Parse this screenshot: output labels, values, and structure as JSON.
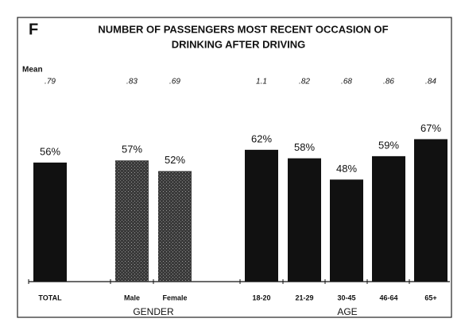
{
  "chart_data": {
    "type": "bar",
    "panel_label": "F",
    "title": "NUMBER OF PASSENGERS MOST RECENT OCCASION OF",
    "title_line2": "DRINKING AFTER DRIVING",
    "mean_label": "Mean",
    "categories": [
      "TOTAL",
      "Male",
      "Female",
      "18-20",
      "21-29",
      "30-45",
      "46-64",
      "65+"
    ],
    "values": [
      56,
      57,
      52,
      62,
      58,
      48,
      59,
      67
    ],
    "value_labels": [
      "56%",
      "57%",
      "52%",
      "62%",
      "58%",
      "48%",
      "59%",
      "67%"
    ],
    "means": [
      0.79,
      0.83,
      0.69,
      1.1,
      0.82,
      0.68,
      0.86,
      0.84
    ],
    "mean_labels": [
      ".79",
      ".83",
      ".69",
      "1.1",
      ".82",
      ".68",
      ".86",
      ".84"
    ],
    "colors": [
      "#111111",
      "#4a4a4a",
      "#4a4a4a",
      "#111111",
      "#111111",
      "#111111",
      "#111111",
      "#111111"
    ],
    "groups": [
      "GENDER",
      "AGE"
    ]
  }
}
